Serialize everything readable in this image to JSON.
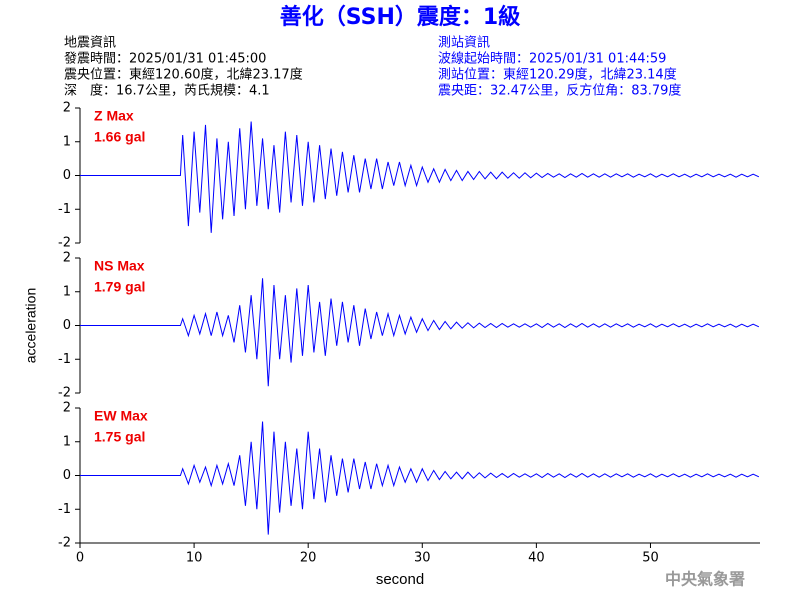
{
  "title": "善化（SSH）震度：1級",
  "info_left": {
    "heading": "地震資訊",
    "lines": [
      "發震時間：2025/01/31 01:45:00",
      "震央位置：東經120.60度，北緯23.17度",
      "深　度：16.7公里，芮氏規模：4.1"
    ]
  },
  "info_right": {
    "heading": "測站資訊",
    "lines": [
      "波線起始時間：2025/01/31 01:44:59",
      "測站位置：東經120.29度，北緯23.14度",
      "震央距：32.47公里，反方位角：83.79度"
    ]
  },
  "watermark": "中央氣象署",
  "chart_data": [
    {
      "type": "line",
      "annotations": [
        "Z Max",
        "1.66 gal"
      ],
      "color": "#0000ff",
      "xlim": [
        0,
        59.6
      ],
      "ylim": [
        -2,
        2
      ],
      "yticks": [
        -2,
        -1,
        0,
        1,
        2
      ],
      "x": [
        0,
        8.8,
        9,
        9.5,
        10,
        10.5,
        11,
        11.5,
        12,
        12.5,
        13,
        13.5,
        14,
        14.5,
        15,
        15.5,
        16,
        16.5,
        17,
        17.5,
        18,
        18.5,
        19,
        19.5,
        20,
        20.5,
        21,
        21.5,
        22,
        22.5,
        23,
        23.5,
        24,
        24.5,
        25,
        25.5,
        26,
        26.5,
        27,
        27.5,
        28,
        28.5,
        29,
        29.5,
        30,
        30.5,
        31,
        31.5,
        32,
        32.5,
        33,
        33.5,
        34,
        34.5,
        35,
        35.5,
        36,
        36.5,
        37,
        37.5,
        38,
        38.5,
        39,
        39.5,
        40,
        40.5,
        41,
        41.5,
        42,
        42.5,
        43,
        43.5,
        44,
        44.5,
        45,
        45.5,
        46,
        46.5,
        47,
        47.5,
        48,
        48.5,
        49,
        49.5,
        50,
        50.5,
        51,
        51.5,
        52,
        52.5,
        53,
        53.5,
        54,
        54.5,
        55,
        55.5,
        56,
        56.5,
        57,
        57.5,
        58,
        58.5,
        59,
        59.5
      ],
      "values": [
        0,
        0,
        1.2,
        -1.5,
        1.3,
        -1.1,
        1.5,
        -1.7,
        1.1,
        -1.3,
        1.0,
        -1.2,
        1.4,
        -1.0,
        1.6,
        -0.9,
        1.1,
        -1.0,
        0.9,
        -1.1,
        1.3,
        -0.8,
        1.2,
        -0.9,
        1.0,
        -0.8,
        0.9,
        -0.7,
        0.8,
        -0.6,
        0.7,
        -0.5,
        0.6,
        -0.5,
        0.5,
        -0.4,
        0.5,
        -0.4,
        0.4,
        -0.3,
        0.4,
        -0.3,
        0.3,
        -0.3,
        0.25,
        -0.2,
        0.2,
        -0.2,
        0.18,
        -0.15,
        0.15,
        -0.15,
        0.12,
        -0.12,
        0.12,
        -0.1,
        0.1,
        -0.1,
        0.1,
        -0.08,
        0.08,
        -0.08,
        0.08,
        -0.07,
        0.07,
        -0.06,
        0.06,
        -0.05,
        0.05,
        -0.06,
        0.05,
        -0.05,
        0.06,
        -0.05,
        0.05,
        -0.05,
        0.05,
        -0.05,
        0.05,
        -0.04,
        0.05,
        -0.05,
        0.04,
        -0.04,
        0.05,
        -0.05,
        0.04,
        -0.04,
        0.05,
        -0.04,
        0.04,
        -0.05,
        0.04,
        -0.04,
        0.05,
        -0.04,
        0.04,
        -0.04,
        0.04,
        -0.05,
        0.04,
        -0.04,
        0.04,
        -0.04
      ]
    },
    {
      "type": "line",
      "annotations": [
        "NS Max",
        "1.79 gal"
      ],
      "color": "#0000ff",
      "y_label": "acceleration",
      "xlim": [
        0,
        59.6
      ],
      "ylim": [
        -2,
        2
      ],
      "yticks": [
        -2,
        -1,
        0,
        1,
        2
      ],
      "x": [
        0,
        8.8,
        9,
        9.5,
        10,
        10.5,
        11,
        11.5,
        12,
        12.5,
        13,
        13.5,
        14,
        14.5,
        15,
        15.5,
        16,
        16.5,
        17,
        17.5,
        18,
        18.5,
        19,
        19.5,
        20,
        20.5,
        21,
        21.5,
        22,
        22.5,
        23,
        23.5,
        24,
        24.5,
        25,
        25.5,
        26,
        26.5,
        27,
        27.5,
        28,
        28.5,
        29,
        29.5,
        30,
        30.5,
        31,
        31.5,
        32,
        32.5,
        33,
        33.5,
        34,
        34.5,
        35,
        35.5,
        36,
        36.5,
        37,
        37.5,
        38,
        38.5,
        39,
        39.5,
        40,
        40.5,
        41,
        41.5,
        42,
        42.5,
        43,
        43.5,
        44,
        44.5,
        45,
        45.5,
        46,
        46.5,
        47,
        47.5,
        48,
        48.5,
        49,
        49.5,
        50,
        50.5,
        51,
        51.5,
        52,
        52.5,
        53,
        53.5,
        54,
        54.5,
        55,
        55.5,
        56,
        56.5,
        57,
        57.5,
        58,
        58.5,
        59,
        59.5
      ],
      "values": [
        0,
        0,
        0.2,
        -0.3,
        0.3,
        -0.25,
        0.35,
        -0.3,
        0.4,
        -0.3,
        0.3,
        -0.5,
        0.6,
        -0.8,
        0.9,
        -1.0,
        1.4,
        -1.8,
        1.2,
        -1.0,
        0.9,
        -1.1,
        1.1,
        -0.9,
        1.2,
        -0.8,
        0.7,
        -0.9,
        0.8,
        -0.6,
        0.7,
        -0.5,
        0.6,
        -0.6,
        0.5,
        -0.4,
        0.4,
        -0.3,
        0.35,
        -0.3,
        0.3,
        -0.25,
        0.25,
        -0.2,
        0.2,
        -0.15,
        0.15,
        -0.12,
        0.12,
        -0.1,
        0.1,
        -0.08,
        0.08,
        -0.07,
        0.07,
        -0.06,
        0.06,
        -0.06,
        0.06,
        -0.05,
        0.05,
        -0.05,
        0.05,
        -0.05,
        0.05,
        -0.06,
        0.06,
        -0.05,
        0.05,
        -0.06,
        0.05,
        -0.05,
        0.06,
        -0.05,
        0.05,
        -0.05,
        0.05,
        -0.05,
        0.05,
        -0.04,
        0.05,
        -0.05,
        0.04,
        -0.04,
        0.05,
        -0.05,
        0.04,
        -0.04,
        0.05,
        -0.04,
        0.04,
        -0.05,
        0.04,
        -0.04,
        0.05,
        -0.04,
        0.04,
        -0.04,
        0.04,
        -0.05,
        0.04,
        -0.04,
        0.04,
        -0.04
      ]
    },
    {
      "type": "line",
      "annotations": [
        "EW Max",
        "1.75 gal"
      ],
      "color": "#0000ff",
      "x_label": "second",
      "xlim": [
        0,
        59.6
      ],
      "xticks": [
        0,
        10,
        20,
        30,
        40,
        50
      ],
      "ylim": [
        -2,
        2
      ],
      "yticks": [
        -2,
        -1,
        0,
        1,
        2
      ],
      "x": [
        0,
        8.8,
        9,
        9.5,
        10,
        10.5,
        11,
        11.5,
        12,
        12.5,
        13,
        13.5,
        14,
        14.5,
        15,
        15.5,
        16,
        16.5,
        17,
        17.5,
        18,
        18.5,
        19,
        19.5,
        20,
        20.5,
        21,
        21.5,
        22,
        22.5,
        23,
        23.5,
        24,
        24.5,
        25,
        25.5,
        26,
        26.5,
        27,
        27.5,
        28,
        28.5,
        29,
        29.5,
        30,
        30.5,
        31,
        31.5,
        32,
        32.5,
        33,
        33.5,
        34,
        34.5,
        35,
        35.5,
        36,
        36.5,
        37,
        37.5,
        38,
        38.5,
        39,
        39.5,
        40,
        40.5,
        41,
        41.5,
        42,
        42.5,
        43,
        43.5,
        44,
        44.5,
        45,
        45.5,
        46,
        46.5,
        47,
        47.5,
        48,
        48.5,
        49,
        49.5,
        50,
        50.5,
        51,
        51.5,
        52,
        52.5,
        53,
        53.5,
        54,
        54.5,
        55,
        55.5,
        56,
        56.5,
        57,
        57.5,
        58,
        58.5,
        59,
        59.5
      ],
      "values": [
        0,
        0,
        0.2,
        -0.25,
        0.3,
        -0.2,
        0.25,
        -0.3,
        0.3,
        -0.25,
        0.35,
        -0.3,
        0.6,
        -0.9,
        1.0,
        -1.0,
        1.6,
        -1.75,
        1.3,
        -1.1,
        1.0,
        -0.9,
        0.8,
        -1.0,
        1.3,
        -0.7,
        0.8,
        -0.8,
        0.6,
        -0.6,
        0.5,
        -0.5,
        0.5,
        -0.4,
        0.4,
        -0.4,
        0.35,
        -0.3,
        0.3,
        -0.3,
        0.25,
        -0.2,
        0.2,
        -0.2,
        0.2,
        -0.15,
        0.15,
        -0.12,
        0.12,
        -0.1,
        0.1,
        -0.1,
        0.1,
        -0.08,
        0.08,
        -0.07,
        0.07,
        -0.06,
        0.06,
        -0.06,
        0.06,
        -0.05,
        0.05,
        -0.05,
        0.05,
        -0.06,
        0.06,
        -0.05,
        0.05,
        -0.06,
        0.05,
        -0.05,
        0.06,
        -0.05,
        0.05,
        -0.05,
        0.05,
        -0.05,
        0.05,
        -0.04,
        0.05,
        -0.05,
        0.04,
        -0.04,
        0.05,
        -0.05,
        0.04,
        -0.04,
        0.05,
        -0.04,
        0.04,
        -0.05,
        0.04,
        -0.04,
        0.05,
        -0.04,
        0.04,
        -0.04,
        0.04,
        -0.05,
        0.04,
        -0.04,
        0.04,
        -0.04
      ]
    }
  ]
}
